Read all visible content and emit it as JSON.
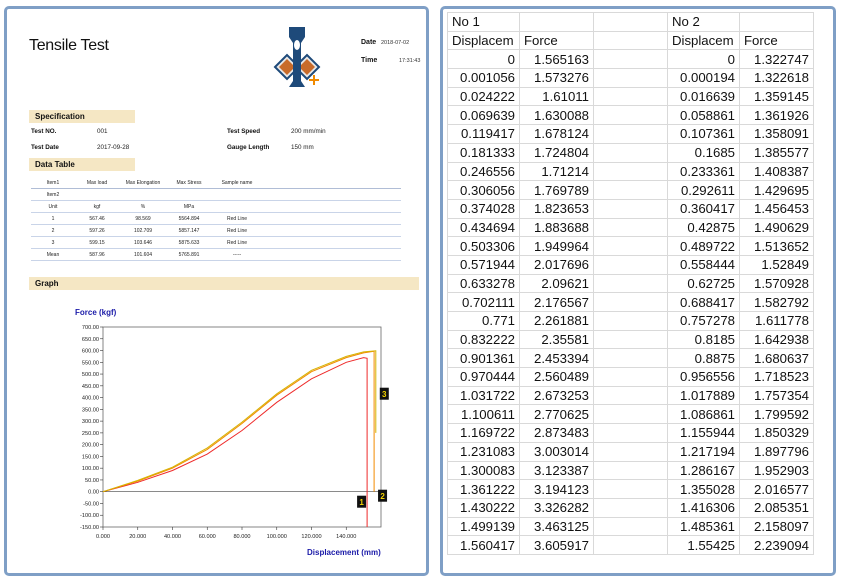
{
  "report": {
    "title": "Tensile Test",
    "date_label": "Date",
    "date_value": "2018-07-02",
    "time_label": "Time",
    "time_value": "17:31:43",
    "specification": {
      "heading": "Specification",
      "test_no_label": "Test NO.",
      "test_no_value": "001",
      "test_date_label": "Test Date",
      "test_date_value": "2017-09-28",
      "test_speed_label": "Test Speed",
      "test_speed_value": "200 mm/min",
      "gauge_length_label": "Gauge Length",
      "gauge_length_value": "150 mm"
    },
    "data_table": {
      "heading": "Data Table",
      "rows": [
        [
          "Item1",
          "Max load",
          "Max Elongation",
          "Max Stress",
          "Sample name",
          "",
          "",
          ""
        ],
        [
          "Item2",
          "",
          "",
          "",
          "",
          "",
          "",
          ""
        ],
        [
          "Unit",
          "kgf",
          "%",
          "MPa",
          "",
          "",
          "",
          ""
        ],
        [
          "1",
          "567.46",
          "98.569",
          "5564.894",
          "Red Line",
          "",
          "",
          ""
        ],
        [
          "2",
          "597.26",
          "102.709",
          "5857.147",
          "Red Line",
          "",
          "",
          ""
        ],
        [
          "3",
          "599.15",
          "103.646",
          "5875.633",
          "Red Line",
          "",
          "",
          ""
        ],
        [
          "Mean",
          "587.96",
          "101.604",
          "5765.891",
          "-----",
          "",
          "",
          ""
        ]
      ]
    },
    "graph": {
      "heading": "Graph"
    }
  },
  "chart_data": {
    "type": "line",
    "ylabel": "Force (kgf)",
    "xlabel": "Displacement (mm)",
    "xlim": [
      0,
      160
    ],
    "ylim": [
      -150,
      700
    ],
    "x_ticks": [
      "0.000",
      "20.000",
      "40.000",
      "60.000",
      "80.000",
      "100.000",
      "120.000",
      "140.000"
    ],
    "y_ticks": [
      "700.00",
      "650.00",
      "600.00",
      "550.00",
      "500.00",
      "450.00",
      "400.00",
      "350.00",
      "300.00",
      "250.00",
      "200.00",
      "150.00",
      "100.00",
      "50.00",
      "0.00",
      "-50.00",
      "-100.00",
      "-150.00"
    ],
    "series": [
      {
        "name": "1",
        "color": "#ee2a2a",
        "x": [
          0,
          20,
          40,
          60,
          80,
          100,
          120,
          140,
          150,
          152,
          152
        ],
        "y": [
          0,
          40,
          90,
          160,
          260,
          380,
          480,
          550,
          570,
          567,
          -150
        ]
      },
      {
        "name": "2",
        "color": "#f28a00",
        "x": [
          0,
          20,
          40,
          60,
          80,
          100,
          120,
          140,
          150,
          156,
          156
        ],
        "y": [
          0,
          45,
          100,
          180,
          290,
          410,
          510,
          570,
          590,
          597,
          0
        ]
      },
      {
        "name": "3",
        "color": "#d6b400",
        "x": [
          0,
          20,
          40,
          60,
          80,
          100,
          120,
          140,
          150,
          157,
          157
        ],
        "y": [
          0,
          48,
          104,
          186,
          296,
          416,
          516,
          575,
          594,
          599,
          250
        ]
      }
    ],
    "markers": [
      "1",
      "2",
      "3"
    ],
    "zero_line": true
  },
  "spreadsheet": {
    "header1": [
      "No 1",
      "",
      "",
      "No 2",
      ""
    ],
    "header2": [
      "Displacem",
      "Force",
      "",
      "Displacem",
      "Force"
    ],
    "rows": [
      [
        "0",
        "1.565163",
        "",
        "0",
        "1.322747"
      ],
      [
        "0.001056",
        "1.573276",
        "",
        "0.000194",
        "1.322618"
      ],
      [
        "0.024222",
        "1.61011",
        "",
        "0.016639",
        "1.359145"
      ],
      [
        "0.069639",
        "1.630088",
        "",
        "0.058861",
        "1.361926"
      ],
      [
        "0.119417",
        "1.678124",
        "",
        "0.107361",
        "1.358091"
      ],
      [
        "0.181333",
        "1.724804",
        "",
        "0.1685",
        "1.385577"
      ],
      [
        "0.246556",
        "1.71214",
        "",
        "0.233361",
        "1.408387"
      ],
      [
        "0.306056",
        "1.769789",
        "",
        "0.292611",
        "1.429695"
      ],
      [
        "0.374028",
        "1.823653",
        "",
        "0.360417",
        "1.456453"
      ],
      [
        "0.434694",
        "1.883688",
        "",
        "0.42875",
        "1.490629"
      ],
      [
        "0.503306",
        "1.949964",
        "",
        "0.489722",
        "1.513652"
      ],
      [
        "0.571944",
        "2.017696",
        "",
        "0.558444",
        "1.52849"
      ],
      [
        "0.633278",
        "2.09621",
        "",
        "0.62725",
        "1.570928"
      ],
      [
        "0.702111",
        "2.176567",
        "",
        "0.688417",
        "1.582792"
      ],
      [
        "0.771",
        "2.261881",
        "",
        "0.757278",
        "1.611778"
      ],
      [
        "0.832222",
        "2.35581",
        "",
        "0.8185",
        "1.642938"
      ],
      [
        "0.901361",
        "2.453394",
        "",
        "0.8875",
        "1.680637"
      ],
      [
        "0.970444",
        "2.560489",
        "",
        "0.956556",
        "1.718523"
      ],
      [
        "1.031722",
        "2.673253",
        "",
        "1.017889",
        "1.757354"
      ],
      [
        "1.100611",
        "2.770625",
        "",
        "1.086861",
        "1.799592"
      ],
      [
        "1.169722",
        "2.873483",
        "",
        "1.155944",
        "1.850329"
      ],
      [
        "1.231083",
        "3.003014",
        "",
        "1.217194",
        "1.897796"
      ],
      [
        "1.300083",
        "3.123387",
        "",
        "1.286167",
        "1.952903"
      ],
      [
        "1.361222",
        "3.194123",
        "",
        "1.355028",
        "2.016577"
      ],
      [
        "1.430222",
        "3.326282",
        "",
        "1.416306",
        "2.085351"
      ],
      [
        "1.499139",
        "3.463125",
        "",
        "1.485361",
        "2.158097"
      ],
      [
        "1.560417",
        "3.605917",
        "",
        "1.55425",
        "2.239094"
      ]
    ]
  }
}
